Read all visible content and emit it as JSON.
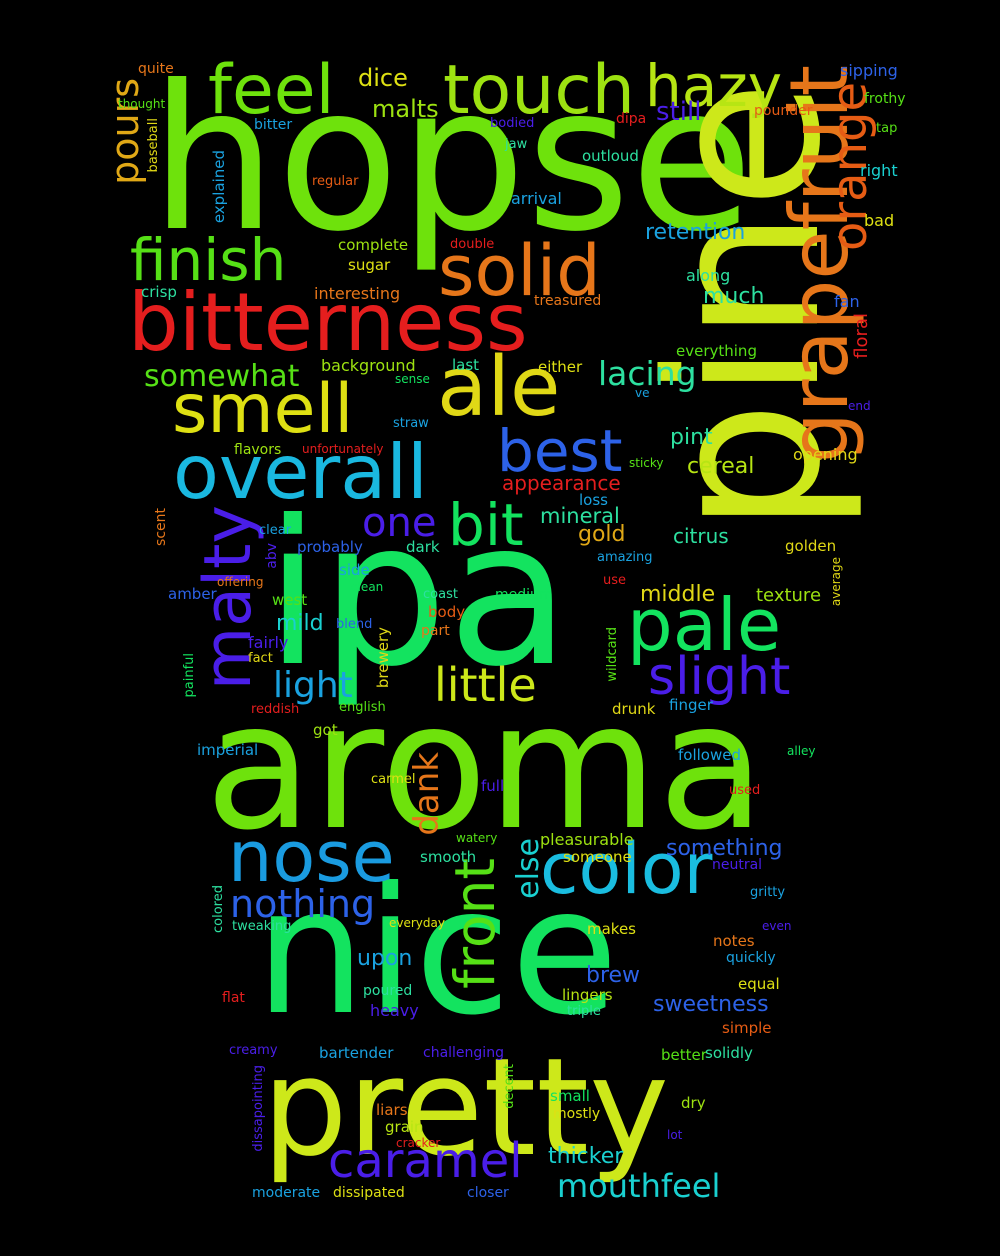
{
  "words": [
    {
      "text": "hopse",
      "color": "#6ee20c"
    },
    {
      "text": "pine",
      "color": "#cde81a"
    },
    {
      "text": "ipa",
      "color": "#13e35f"
    },
    {
      "text": "aroma",
      "color": "#6ee20c"
    },
    {
      "text": "nice",
      "color": "#13e35f"
    },
    {
      "text": "pretty",
      "color": "#cde81a"
    },
    {
      "text": "bitterness",
      "color": "#e51e1e"
    },
    {
      "text": "touch",
      "color": "#9de211"
    },
    {
      "text": "feel",
      "color": "#6ee20c"
    },
    {
      "text": "hazy",
      "color": "#b7e513"
    },
    {
      "text": "grapefruit",
      "color": "#e6761a"
    },
    {
      "text": "orange",
      "color": "#e65c14"
    },
    {
      "text": "solid",
      "color": "#e6761a"
    },
    {
      "text": "finish",
      "color": "#56e016"
    },
    {
      "text": "smell",
      "color": "#dee013"
    },
    {
      "text": "ale",
      "color": "#e0d816"
    },
    {
      "text": "overall",
      "color": "#1ab8e0"
    },
    {
      "text": "best",
      "color": "#2d62e8"
    },
    {
      "text": "malty",
      "color": "#4a1ee8"
    },
    {
      "text": "one",
      "color": "#4a1ee8"
    },
    {
      "text": "bit",
      "color": "#13e35f"
    },
    {
      "text": "pale",
      "color": "#13e35f"
    },
    {
      "text": "slight",
      "color": "#4a1ee8"
    },
    {
      "text": "little",
      "color": "#cde81a"
    },
    {
      "text": "light",
      "color": "#1aa2e0"
    },
    {
      "text": "nose",
      "color": "#1a9be0"
    },
    {
      "text": "color",
      "color": "#1abde0"
    },
    {
      "text": "front",
      "color": "#56e016"
    },
    {
      "text": "nothing",
      "color": "#2d62e8"
    },
    {
      "text": "caramel",
      "color": "#4a1ee8"
    },
    {
      "text": "mouthfeel",
      "color": "#1ad0d0"
    },
    {
      "text": "pours",
      "color": "#e0a816"
    },
    {
      "text": "somewhat",
      "color": "#56e016"
    },
    {
      "text": "lacing",
      "color": "#2de0a0"
    },
    {
      "text": "else",
      "color": "#1ad0d0"
    },
    {
      "text": "dank",
      "color": "#e6761a"
    },
    {
      "text": "dice",
      "color": "#dee013"
    },
    {
      "text": "malts",
      "color": "#9de211"
    },
    {
      "text": "still",
      "color": "#4a1ee8"
    },
    {
      "text": "retention",
      "color": "#1aa2e0"
    },
    {
      "text": "much",
      "color": "#2de0a0"
    },
    {
      "text": "pint",
      "color": "#2de0a0"
    },
    {
      "text": "cereal",
      "color": "#b7e513"
    },
    {
      "text": "appearance",
      "color": "#e51e1e"
    },
    {
      "text": "mineral",
      "color": "#2de0a0"
    },
    {
      "text": "gold",
      "color": "#e0a816"
    },
    {
      "text": "citrus",
      "color": "#2de0a0"
    },
    {
      "text": "middle",
      "color": "#e0d816"
    },
    {
      "text": "texture",
      "color": "#9de211"
    },
    {
      "text": "mild",
      "color": "#1ad0d0"
    },
    {
      "text": "upon",
      "color": "#1aa2e0"
    },
    {
      "text": "brew",
      "color": "#2d62e8"
    },
    {
      "text": "sweetness",
      "color": "#2d62e8"
    },
    {
      "text": "something",
      "color": "#2d62e8"
    },
    {
      "text": "thicker",
      "color": "#1ad0d0"
    },
    {
      "text": "floral",
      "color": "#e51e1e"
    },
    {
      "text": "opening",
      "color": "#e0d816"
    },
    {
      "text": "quite",
      "color": "#e6761a"
    },
    {
      "text": "sipping",
      "color": "#2d62e8"
    },
    {
      "text": "thought",
      "color": "#56e016"
    },
    {
      "text": "frothy",
      "color": "#56e016"
    },
    {
      "text": "bitter",
      "color": "#1aa2e0"
    },
    {
      "text": "bodied",
      "color": "#4a1ee8"
    },
    {
      "text": "dipa",
      "color": "#e51e1e"
    },
    {
      "text": "pounder",
      "color": "#e65c14"
    },
    {
      "text": "tap",
      "color": "#56e016"
    },
    {
      "text": "baseball",
      "color": "#e0d816"
    },
    {
      "text": "jaw",
      "color": "#2de0a0"
    },
    {
      "text": "outloud",
      "color": "#2de0a0"
    },
    {
      "text": "right",
      "color": "#1ad0d0"
    },
    {
      "text": "explained",
      "color": "#1aa2e0"
    },
    {
      "text": "regular",
      "color": "#e65c14"
    },
    {
      "text": "arrival",
      "color": "#1aa2e0"
    },
    {
      "text": "bad",
      "color": "#dee013"
    },
    {
      "text": "complete",
      "color": "#9de211"
    },
    {
      "text": "double",
      "color": "#e51e1e"
    },
    {
      "text": "along",
      "color": "#2de0a0"
    },
    {
      "text": "sugar",
      "color": "#dee013"
    },
    {
      "text": "crisp",
      "color": "#2de0a0"
    },
    {
      "text": "interesting",
      "color": "#e6761a"
    },
    {
      "text": "treasured",
      "color": "#e6761a"
    },
    {
      "text": "fan",
      "color": "#2d62e8"
    },
    {
      "text": "everything",
      "color": "#56e016"
    },
    {
      "text": "background",
      "color": "#9de211"
    },
    {
      "text": "last",
      "color": "#2de0a0"
    },
    {
      "text": "sense",
      "color": "#13e35f"
    },
    {
      "text": "either",
      "color": "#dee013"
    },
    {
      "text": "ve",
      "color": "#1aa2e0"
    },
    {
      "text": "end",
      "color": "#4a1ee8"
    },
    {
      "text": "straw",
      "color": "#1aa2e0"
    },
    {
      "text": "flavors",
      "color": "#9de211"
    },
    {
      "text": "unfortunately",
      "color": "#e51e1e"
    },
    {
      "text": "sticky",
      "color": "#56e016"
    },
    {
      "text": "loss",
      "color": "#1aa2e0"
    },
    {
      "text": "scent",
      "color": "#e6761a"
    },
    {
      "text": "clear",
      "color": "#1aa2e0"
    },
    {
      "text": "abv",
      "color": "#4a1ee8"
    },
    {
      "text": "probably",
      "color": "#2d62e8"
    },
    {
      "text": "dark",
      "color": "#2de0a0"
    },
    {
      "text": "amazing",
      "color": "#1aa2e0"
    },
    {
      "text": "golden",
      "color": "#e0d816"
    },
    {
      "text": "side",
      "color": "#1aa2e0"
    },
    {
      "text": "offering",
      "color": "#e6761a"
    },
    {
      "text": "clean",
      "color": "#13e35f"
    },
    {
      "text": "use",
      "color": "#e51e1e"
    },
    {
      "text": "average",
      "color": "#e0d816"
    },
    {
      "text": "amber",
      "color": "#2d62e8"
    },
    {
      "text": "coast",
      "color": "#2de0a0"
    },
    {
      "text": "medium",
      "color": "#13e35f"
    },
    {
      "text": "west",
      "color": "#56e016"
    },
    {
      "text": "body",
      "color": "#e65c14"
    },
    {
      "text": "blend",
      "color": "#2d62e8"
    },
    {
      "text": "brewery",
      "color": "#e0d816"
    },
    {
      "text": "part",
      "color": "#e6761a"
    },
    {
      "text": "fairly",
      "color": "#4a1ee8"
    },
    {
      "text": "wildcard",
      "color": "#56e016"
    },
    {
      "text": "fact",
      "color": "#e0d816"
    },
    {
      "text": "painful",
      "color": "#13e35f"
    },
    {
      "text": "reddish",
      "color": "#e51e1e"
    },
    {
      "text": "english",
      "color": "#56e016"
    },
    {
      "text": "drunk",
      "color": "#e0d816"
    },
    {
      "text": "finger",
      "color": "#1aa2e0"
    },
    {
      "text": "got",
      "color": "#9de211"
    },
    {
      "text": "imperial",
      "color": "#1aa2e0"
    },
    {
      "text": "followed",
      "color": "#1aa2e0"
    },
    {
      "text": "alley",
      "color": "#13e35f"
    },
    {
      "text": "carmel",
      "color": "#dee013"
    },
    {
      "text": "full",
      "color": "#4a1ee8"
    },
    {
      "text": "used",
      "color": "#e51e1e"
    },
    {
      "text": "watery",
      "color": "#56e016"
    },
    {
      "text": "pleasurable",
      "color": "#9de211"
    },
    {
      "text": "smooth",
      "color": "#2de0a0"
    },
    {
      "text": "someone",
      "color": "#dee013"
    },
    {
      "text": "neutral",
      "color": "#4a1ee8"
    },
    {
      "text": "gritty",
      "color": "#1aa2e0"
    },
    {
      "text": "colored",
      "color": "#2de0a0"
    },
    {
      "text": "everyday",
      "color": "#dee013"
    },
    {
      "text": "tweaking",
      "color": "#2de0a0"
    },
    {
      "text": "makes",
      "color": "#dee013"
    },
    {
      "text": "even",
      "color": "#4a1ee8"
    },
    {
      "text": "notes",
      "color": "#e6761a"
    },
    {
      "text": "quickly",
      "color": "#1aa2e0"
    },
    {
      "text": "equal",
      "color": "#dee013"
    },
    {
      "text": "flat",
      "color": "#e51e1e"
    },
    {
      "text": "poured",
      "color": "#2de0a0"
    },
    {
      "text": "lingers",
      "color": "#b7e513"
    },
    {
      "text": "triple",
      "color": "#2de0a0"
    },
    {
      "text": "heavy",
      "color": "#4a1ee8"
    },
    {
      "text": "simple",
      "color": "#e65c14"
    },
    {
      "text": "creamy",
      "color": "#4a1ee8"
    },
    {
      "text": "bartender",
      "color": "#1aa2e0"
    },
    {
      "text": "challenging",
      "color": "#4a1ee8"
    },
    {
      "text": "better",
      "color": "#56e016"
    },
    {
      "text": "solidly",
      "color": "#2de0a0"
    },
    {
      "text": "dissapointing",
      "color": "#4a1ee8"
    },
    {
      "text": "decent",
      "color": "#56e016"
    },
    {
      "text": "small",
      "color": "#13e35f"
    },
    {
      "text": "dry",
      "color": "#9de211"
    },
    {
      "text": "mostly",
      "color": "#dee013"
    },
    {
      "text": "liars",
      "color": "#e6761a"
    },
    {
      "text": "grain",
      "color": "#b7e513"
    },
    {
      "text": "cracker",
      "color": "#e51e1e"
    },
    {
      "text": "lot",
      "color": "#4a1ee8"
    },
    {
      "text": "moderate",
      "color": "#1aa2e0"
    },
    {
      "text": "dissipated",
      "color": "#dee013"
    },
    {
      "text": "closer",
      "color": "#2d62e8"
    }
  ]
}
